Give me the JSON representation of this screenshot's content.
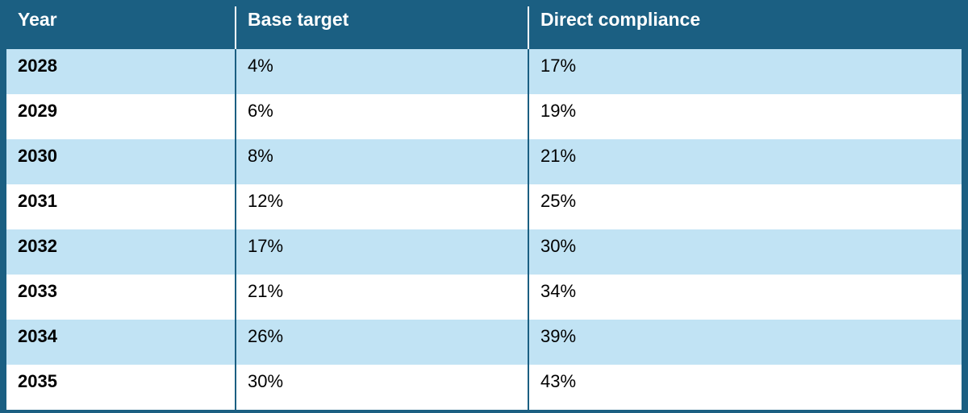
{
  "chart_data": {
    "type": "table",
    "columns": [
      "Year",
      "Base target",
      "Direct compliance"
    ],
    "rows": [
      [
        "2028",
        "4%",
        "17%"
      ],
      [
        "2029",
        "6%",
        "19%"
      ],
      [
        "2030",
        "8%",
        "21%"
      ],
      [
        "2031",
        "12%",
        "25%"
      ],
      [
        "2032",
        "17%",
        "30%"
      ],
      [
        "2033",
        "21%",
        "34%"
      ],
      [
        "2034",
        "26%",
        "39%"
      ],
      [
        "2035",
        "30%",
        "43%"
      ]
    ]
  },
  "colors": {
    "header_bg": "#1b5f82",
    "band_bg": "#c1e3f4",
    "plain_bg": "#ffffff"
  }
}
